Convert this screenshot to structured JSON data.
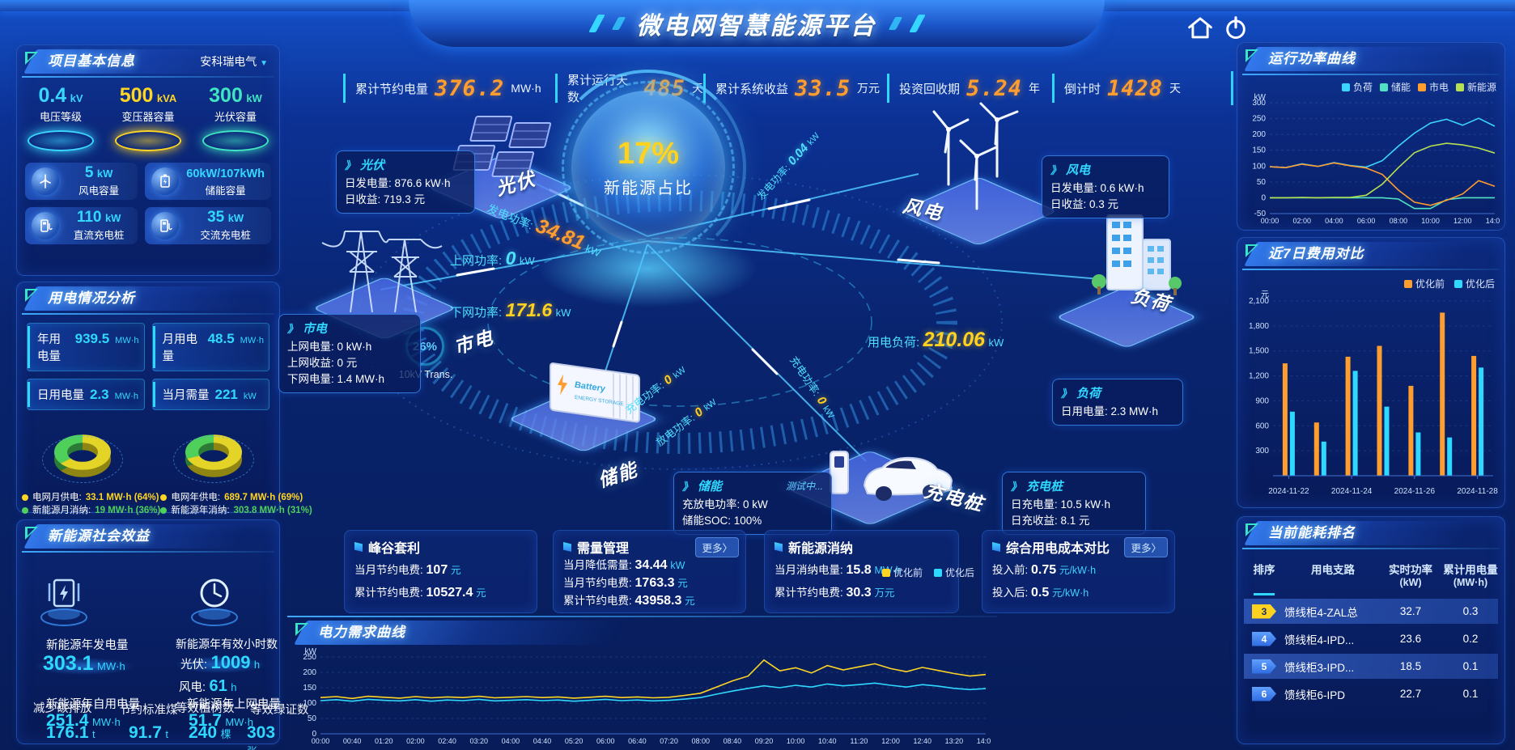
{
  "app": {
    "title": "微电网智慧能源平台"
  },
  "icons": {
    "panel_arrow": "》",
    "dropdown_arrow": "▼"
  },
  "stats_bar": {
    "items": [
      {
        "label": "累计节约电量",
        "value": "376.2",
        "unit": "MW·h"
      },
      {
        "label": "累计运行天数",
        "value": "485",
        "unit": "天"
      },
      {
        "label": "累计系统收益",
        "value": "33.5",
        "unit": "万元"
      },
      {
        "label": "投资回收期",
        "value": "5.24",
        "unit": "年"
      },
      {
        "label": "倒计时",
        "value": "1428",
        "unit": "天"
      }
    ]
  },
  "project_info": {
    "title": "项目基本信息",
    "company": "安科瑞电气",
    "pedestals": [
      {
        "value": "0.4",
        "unit": "kV",
        "label": "电压等级",
        "color": "#3ad6ff"
      },
      {
        "value": "500",
        "unit": "kVA",
        "label": "变压器容量",
        "color": "#ffd523"
      },
      {
        "value": "300",
        "unit": "kW",
        "label": "光伏容量",
        "color": "#3fe5c0"
      }
    ],
    "cards": [
      {
        "value": "5",
        "unit": "kW",
        "label": "风电容量"
      },
      {
        "value": "60kW/107kWh",
        "unit": "",
        "label": "储能容量"
      },
      {
        "value": "110",
        "unit": "kW",
        "label": "直流充电桩"
      },
      {
        "value": "35",
        "unit": "kW",
        "label": "交流充电桩"
      }
    ]
  },
  "power_usage": {
    "title": "用电情况分析",
    "stats": [
      {
        "label": "年用电量",
        "value": "939.5",
        "unit": "MW·h"
      },
      {
        "label": "月用电量",
        "value": "48.5",
        "unit": "MW·h"
      },
      {
        "label": "日用电量",
        "value": "2.3",
        "unit": "MW·h"
      },
      {
        "label": "当月需量",
        "value": "221",
        "unit": "kW"
      }
    ],
    "month_legend": [
      {
        "label": "电网月供电:",
        "value": "33.1 MW·h (64%)",
        "color": "#ffd523"
      },
      {
        "label": "新能源月消纳:",
        "value": "19 MW·h (36%)",
        "color": "#4fd05a"
      }
    ],
    "year_legend": [
      {
        "label": "电网年供电:",
        "value": "689.7 MW·h (69%)",
        "color": "#ffd523"
      },
      {
        "label": "新能源年消纳:",
        "value": "303.8 MW·h (31%)",
        "color": "#4fd05a"
      }
    ]
  },
  "social_benefit": {
    "title": "新能源社会效益",
    "gen_label": "新能源年发电量",
    "gen_value": "303.1",
    "gen_unit": "MW·h",
    "hours_label": "新能源年有效小时数",
    "pv_label": "光伏:",
    "pv_value": "1009",
    "pv_unit": "h",
    "wind_label": "风电:",
    "wind_value": "61",
    "wind_unit": "h",
    "self_label": "新能源年自用电量",
    "self_value": "251.4",
    "self_unit": "MW·h",
    "carbon_label": "减少碳排放",
    "carbon_value": "176.1",
    "carbon_unit": "t",
    "coal_label": "节约标准煤",
    "coal_value": "91.7",
    "coal_unit": "t",
    "feed_label": "新能源年上网电量",
    "feed_value": "51.7",
    "feed_unit": "MW·h",
    "tree_label": "等效植树数",
    "tree_value": "240",
    "tree_unit": "棵",
    "cert_label": "等效绿证数",
    "cert_value": "303",
    "cert_unit": "张"
  },
  "diagram": {
    "center": {
      "value": "17%",
      "label": "新能源占比"
    },
    "transformer": {
      "pct": "26%",
      "label": "10kV Trans."
    },
    "nodes": {
      "pv": "光伏",
      "grid": "市电",
      "storage": "储能",
      "charger": "充电桩",
      "wind": "风电",
      "load": "负荷"
    },
    "pv_box": {
      "title": "光伏",
      "lines": [
        {
          "label": "日发电量:",
          "value": "876.6 kW·h"
        },
        {
          "label": "日收益:",
          "value": "719.3 元"
        }
      ]
    },
    "wind_box": {
      "title": "风电",
      "lines": [
        {
          "label": "日发电量:",
          "value": "0.6 kW·h"
        },
        {
          "label": "日收益:",
          "value": "0.3 元"
        }
      ]
    },
    "grid_box": {
      "title": "市电",
      "lines": [
        {
          "label": "上网电量:",
          "value": "0 kW·h"
        },
        {
          "label": "上网收益:",
          "value": "0 元"
        },
        {
          "label": "下网电量:",
          "value": "1.4 MW·h"
        }
      ]
    },
    "load_box": {
      "title": "负荷",
      "lines": [
        {
          "label": "日用电量:",
          "value": "2.3 MW·h"
        }
      ]
    },
    "storage_box": {
      "title": "储能",
      "tag": "测试中...",
      "lines": [
        {
          "label": "充放电功率:",
          "value": "0 kW"
        },
        {
          "label": "储能SOC:",
          "value": "100%"
        }
      ]
    },
    "charger_box": {
      "title": "充电桩",
      "lines": [
        {
          "label": "日充电量:",
          "value": "10.5 kW·h"
        },
        {
          "label": "日充收益:",
          "value": "8.1 元"
        }
      ]
    },
    "flows": {
      "pv_gen": {
        "label": "发电功率:",
        "value": "34.81",
        "unit": "kW"
      },
      "wind_gen": {
        "label": "发电功率:",
        "value": "0.04",
        "unit": "kW"
      },
      "feed_in": {
        "label": "上网功率:",
        "value": "0",
        "unit": "kW"
      },
      "draw_down": {
        "label": "下网功率:",
        "value": "171.6",
        "unit": "kW"
      },
      "charge": {
        "label": "充电功率:",
        "value": "0",
        "unit": "kW"
      },
      "discharge": {
        "label": "放电功率:",
        "value": "0",
        "unit": "kW"
      },
      "load_power": {
        "label": "用电负荷:",
        "value": "210.06",
        "unit": "kW"
      },
      "pile_charge": {
        "label": "充电功率:",
        "value": "0",
        "unit": "kW"
      }
    }
  },
  "bottom_cards": [
    {
      "title": "峰谷套利",
      "lines": [
        {
          "label": "当月节约电费:",
          "value": "107",
          "unit": "元"
        },
        {
          "label": "累计节约电费:",
          "value": "10527.4",
          "unit": "元"
        }
      ]
    },
    {
      "title": "需量管理",
      "more": "更多〉",
      "lines": [
        {
          "label": "当月降低需量:",
          "value": "34.44",
          "unit": "kW"
        },
        {
          "label": "当月节约电费:",
          "value": "1763.3",
          "unit": "元"
        },
        {
          "label": "累计节约电费:",
          "value": "43958.3",
          "unit": "元"
        }
      ]
    },
    {
      "title": "新能源消纳",
      "lines": [
        {
          "label": "当月消纳电量:",
          "value": "15.8",
          "unit": "MW·h"
        },
        {
          "label": "累计节约电费:",
          "value": "30.3",
          "unit": "万元"
        }
      ]
    },
    {
      "title": "综合用电成本对比",
      "more": "更多〉",
      "lines": [
        {
          "label": "投入前:",
          "value": "0.75",
          "unit": "元/kW·h"
        },
        {
          "label": "投入后:",
          "value": "0.5",
          "unit": "元/kW·h"
        }
      ]
    }
  ],
  "demand_panel": {
    "title": "电力需求曲线",
    "legend": [
      {
        "label": "优化前",
        "color": "#ffd523"
      },
      {
        "label": "优化后",
        "color": "#2fd8ff"
      }
    ]
  },
  "right_panels": {
    "power_curve": {
      "title": "运行功率曲线",
      "legend": [
        {
          "label": "负荷",
          "color": "#3bd6ff"
        },
        {
          "label": "储能",
          "color": "#4fe3c1"
        },
        {
          "label": "市电",
          "color": "#ff9d2e"
        },
        {
          "label": "新能源",
          "color": "#b5e04f"
        }
      ]
    },
    "cost_compare": {
      "title": "近7日费用对比",
      "legend": [
        {
          "label": "优化前",
          "color": "#ff9d2e"
        },
        {
          "label": "优化后",
          "color": "#2fd8ff"
        }
      ]
    },
    "ranking": {
      "title": "当前能耗排名",
      "columns": [
        {
          "l1": "排序",
          "l2": ""
        },
        {
          "l1": "用电支路",
          "l2": ""
        },
        {
          "l1": "实时功率",
          "l2": "(kW)"
        },
        {
          "l1": "累计用电量",
          "l2": "(MW·h)"
        }
      ],
      "rows": [
        {
          "rank": "3",
          "branch": "馈线柜4-ZAL总",
          "power": "32.7",
          "energy": "0.3"
        },
        {
          "rank": "4",
          "branch": "馈线柜4-IPD...",
          "power": "23.6",
          "energy": "0.2"
        },
        {
          "rank": "5",
          "branch": "馈线柜3-IPD...",
          "power": "18.5",
          "energy": "0.1"
        },
        {
          "rank": "6",
          "branch": "馈线柜6-IPD",
          "power": "22.7",
          "energy": "0.1"
        }
      ]
    }
  },
  "chart_data": [
    {
      "id": "power_curve",
      "type": "line",
      "title": "运行功率曲线",
      "ylabel": "kW",
      "ylim": [
        -50,
        300
      ],
      "yticks": [
        -50,
        0,
        50,
        100,
        150,
        200,
        250,
        300
      ],
      "x": [
        "00:00",
        "01:00",
        "02:00",
        "03:00",
        "04:00",
        "05:00",
        "06:00",
        "07:00",
        "08:00",
        "09:00",
        "10:00",
        "11:00",
        "12:00",
        "13:00",
        "14:00"
      ],
      "x_tick_every": 2,
      "legend_position": "top",
      "series": [
        {
          "name": "负荷",
          "color": "#3bd6ff",
          "values": [
            98,
            95,
            107,
            99,
            111,
            102,
            97,
            117,
            163,
            204,
            236,
            248,
            229,
            251,
            226
          ]
        },
        {
          "name": "储能",
          "color": "#4fe3c1",
          "values": [
            0,
            0,
            0,
            0,
            0,
            0,
            0,
            0,
            -4,
            -34,
            -34,
            -6,
            0,
            0,
            0
          ]
        },
        {
          "name": "市电",
          "color": "#ff9d2e",
          "values": [
            98,
            95,
            106,
            99,
            110,
            101,
            94,
            74,
            24,
            -14,
            -24,
            -8,
            12,
            54,
            36
          ]
        },
        {
          "name": "新能源",
          "color": "#b5e04f",
          "values": [
            0,
            0,
            1,
            0,
            1,
            1,
            8,
            43,
            95,
            142,
            163,
            172,
            167,
            157,
            141
          ]
        }
      ]
    },
    {
      "id": "cost_compare",
      "type": "bar",
      "title": "近7日费用对比",
      "ylabel": "元",
      "ylim": [
        0,
        2100
      ],
      "yticks": [
        300,
        600,
        900,
        1200,
        1500,
        1800,
        2100
      ],
      "categories": [
        "2024-11-22",
        "2024-11-23",
        "2024-11-24",
        "2024-11-25",
        "2024-11-26",
        "2024-11-27",
        "2024-11-28"
      ],
      "x_tick_every": 2,
      "legend_position": "top-right",
      "series": [
        {
          "name": "优化前",
          "color": "#ff9d2e",
          "values": [
            1350,
            640,
            1430,
            1560,
            1080,
            1960,
            1440
          ]
        },
        {
          "name": "优化后",
          "color": "#2fd8ff",
          "values": [
            770,
            410,
            1260,
            830,
            520,
            460,
            1300
          ]
        }
      ]
    },
    {
      "id": "demand_curve",
      "type": "line",
      "title": "电力需求曲线",
      "ylabel": "kW",
      "ylim": [
        0,
        250
      ],
      "yticks": [
        0,
        50,
        100,
        150,
        200,
        250
      ],
      "x": [
        "00:00",
        "00:20",
        "00:40",
        "01:00",
        "01:20",
        "01:40",
        "02:00",
        "02:20",
        "02:40",
        "03:00",
        "03:20",
        "03:40",
        "04:00",
        "04:20",
        "04:40",
        "05:00",
        "05:20",
        "05:40",
        "06:00",
        "06:20",
        "06:40",
        "07:00",
        "07:20",
        "07:40",
        "08:00",
        "08:20",
        "08:40",
        "09:00",
        "09:20",
        "09:40",
        "10:00",
        "10:20",
        "10:40",
        "11:00",
        "11:20",
        "11:40",
        "12:00",
        "12:20",
        "12:40",
        "13:00",
        "13:20",
        "13:40",
        "14:00"
      ],
      "x_tick_every": 2,
      "legend_position": "top-right",
      "series": [
        {
          "name": "优化前",
          "color": "#ffd523",
          "values": [
            118,
            121,
            115,
            122,
            119,
            116,
            121,
            117,
            120,
            118,
            122,
            117,
            119,
            121,
            118,
            120,
            116,
            119,
            122,
            118,
            120,
            117,
            119,
            125,
            132,
            152,
            172,
            188,
            240,
            205,
            215,
            198,
            222,
            208,
            218,
            228,
            212,
            202,
            216,
            206,
            196,
            188,
            193
          ]
        },
        {
          "name": "优化后",
          "color": "#2fd8ff",
          "values": [
            108,
            111,
            106,
            112,
            109,
            107,
            111,
            106,
            110,
            108,
            112,
            107,
            109,
            111,
            108,
            110,
            106,
            109,
            112,
            108,
            110,
            107,
            109,
            113,
            118,
            129,
            139,
            148,
            156,
            150,
            158,
            152,
            162,
            156,
            160,
            165,
            158,
            152,
            160,
            155,
            148,
            144,
            147
          ]
        }
      ]
    },
    {
      "id": "month_donut",
      "type": "pie",
      "labels": [
        "电网月供电",
        "新能源月消纳"
      ],
      "values": [
        64,
        36
      ],
      "colors": [
        "#e3d427",
        "#4fd05a"
      ],
      "colors_dark": [
        "#8f8512",
        "#2b7a35"
      ]
    },
    {
      "id": "year_donut",
      "type": "pie",
      "labels": [
        "电网年供电",
        "新能源年消纳"
      ],
      "values": [
        69,
        31
      ],
      "colors": [
        "#e3d427",
        "#4fd05a"
      ],
      "colors_dark": [
        "#8f8512",
        "#2b7a35"
      ]
    }
  ]
}
